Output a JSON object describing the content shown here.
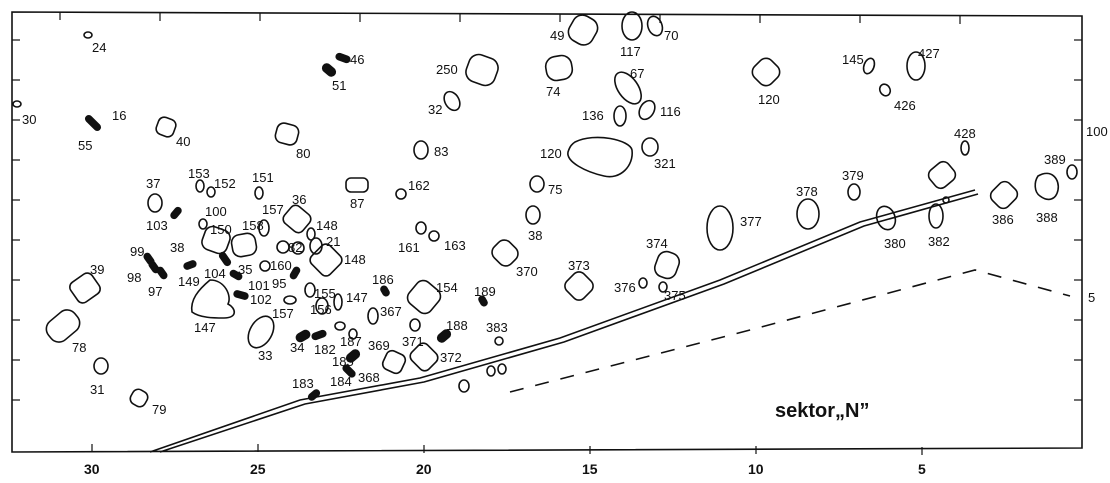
{
  "x_ticks": [
    "30",
    "25",
    "20",
    "15",
    "10",
    "5"
  ],
  "right_labels": [
    "100",
    "5"
  ],
  "sector_label": "sektor„N”",
  "features": [
    "24",
    "30",
    "16",
    "55",
    "40",
    "46",
    "51",
    "80",
    "153",
    "152",
    "151",
    "37",
    "103",
    "100",
    "150",
    "158",
    "157",
    "36",
    "148",
    "21",
    "148",
    "99",
    "98",
    "97",
    "38",
    "149",
    "104",
    "35",
    "101",
    "102",
    "160",
    "95",
    "82",
    "39",
    "78",
    "147",
    "157",
    "155",
    "156",
    "147",
    "33",
    "34",
    "182",
    "187",
    "186",
    "367",
    "185",
    "369",
    "368",
    "183",
    "184",
    "31",
    "79",
    "250",
    "32",
    "49",
    "117",
    "70",
    "74",
    "67",
    "136",
    "116",
    "83",
    "120",
    "321",
    "162",
    "87",
    "75",
    "161",
    "163",
    "38",
    "370",
    "154",
    "189",
    "188",
    "383",
    "371",
    "372",
    "373",
    "376",
    "374",
    "375",
    "377",
    "378",
    "379",
    "380",
    "382",
    "120",
    "145",
    "427",
    "426",
    "428",
    "386",
    "388",
    "389"
  ]
}
